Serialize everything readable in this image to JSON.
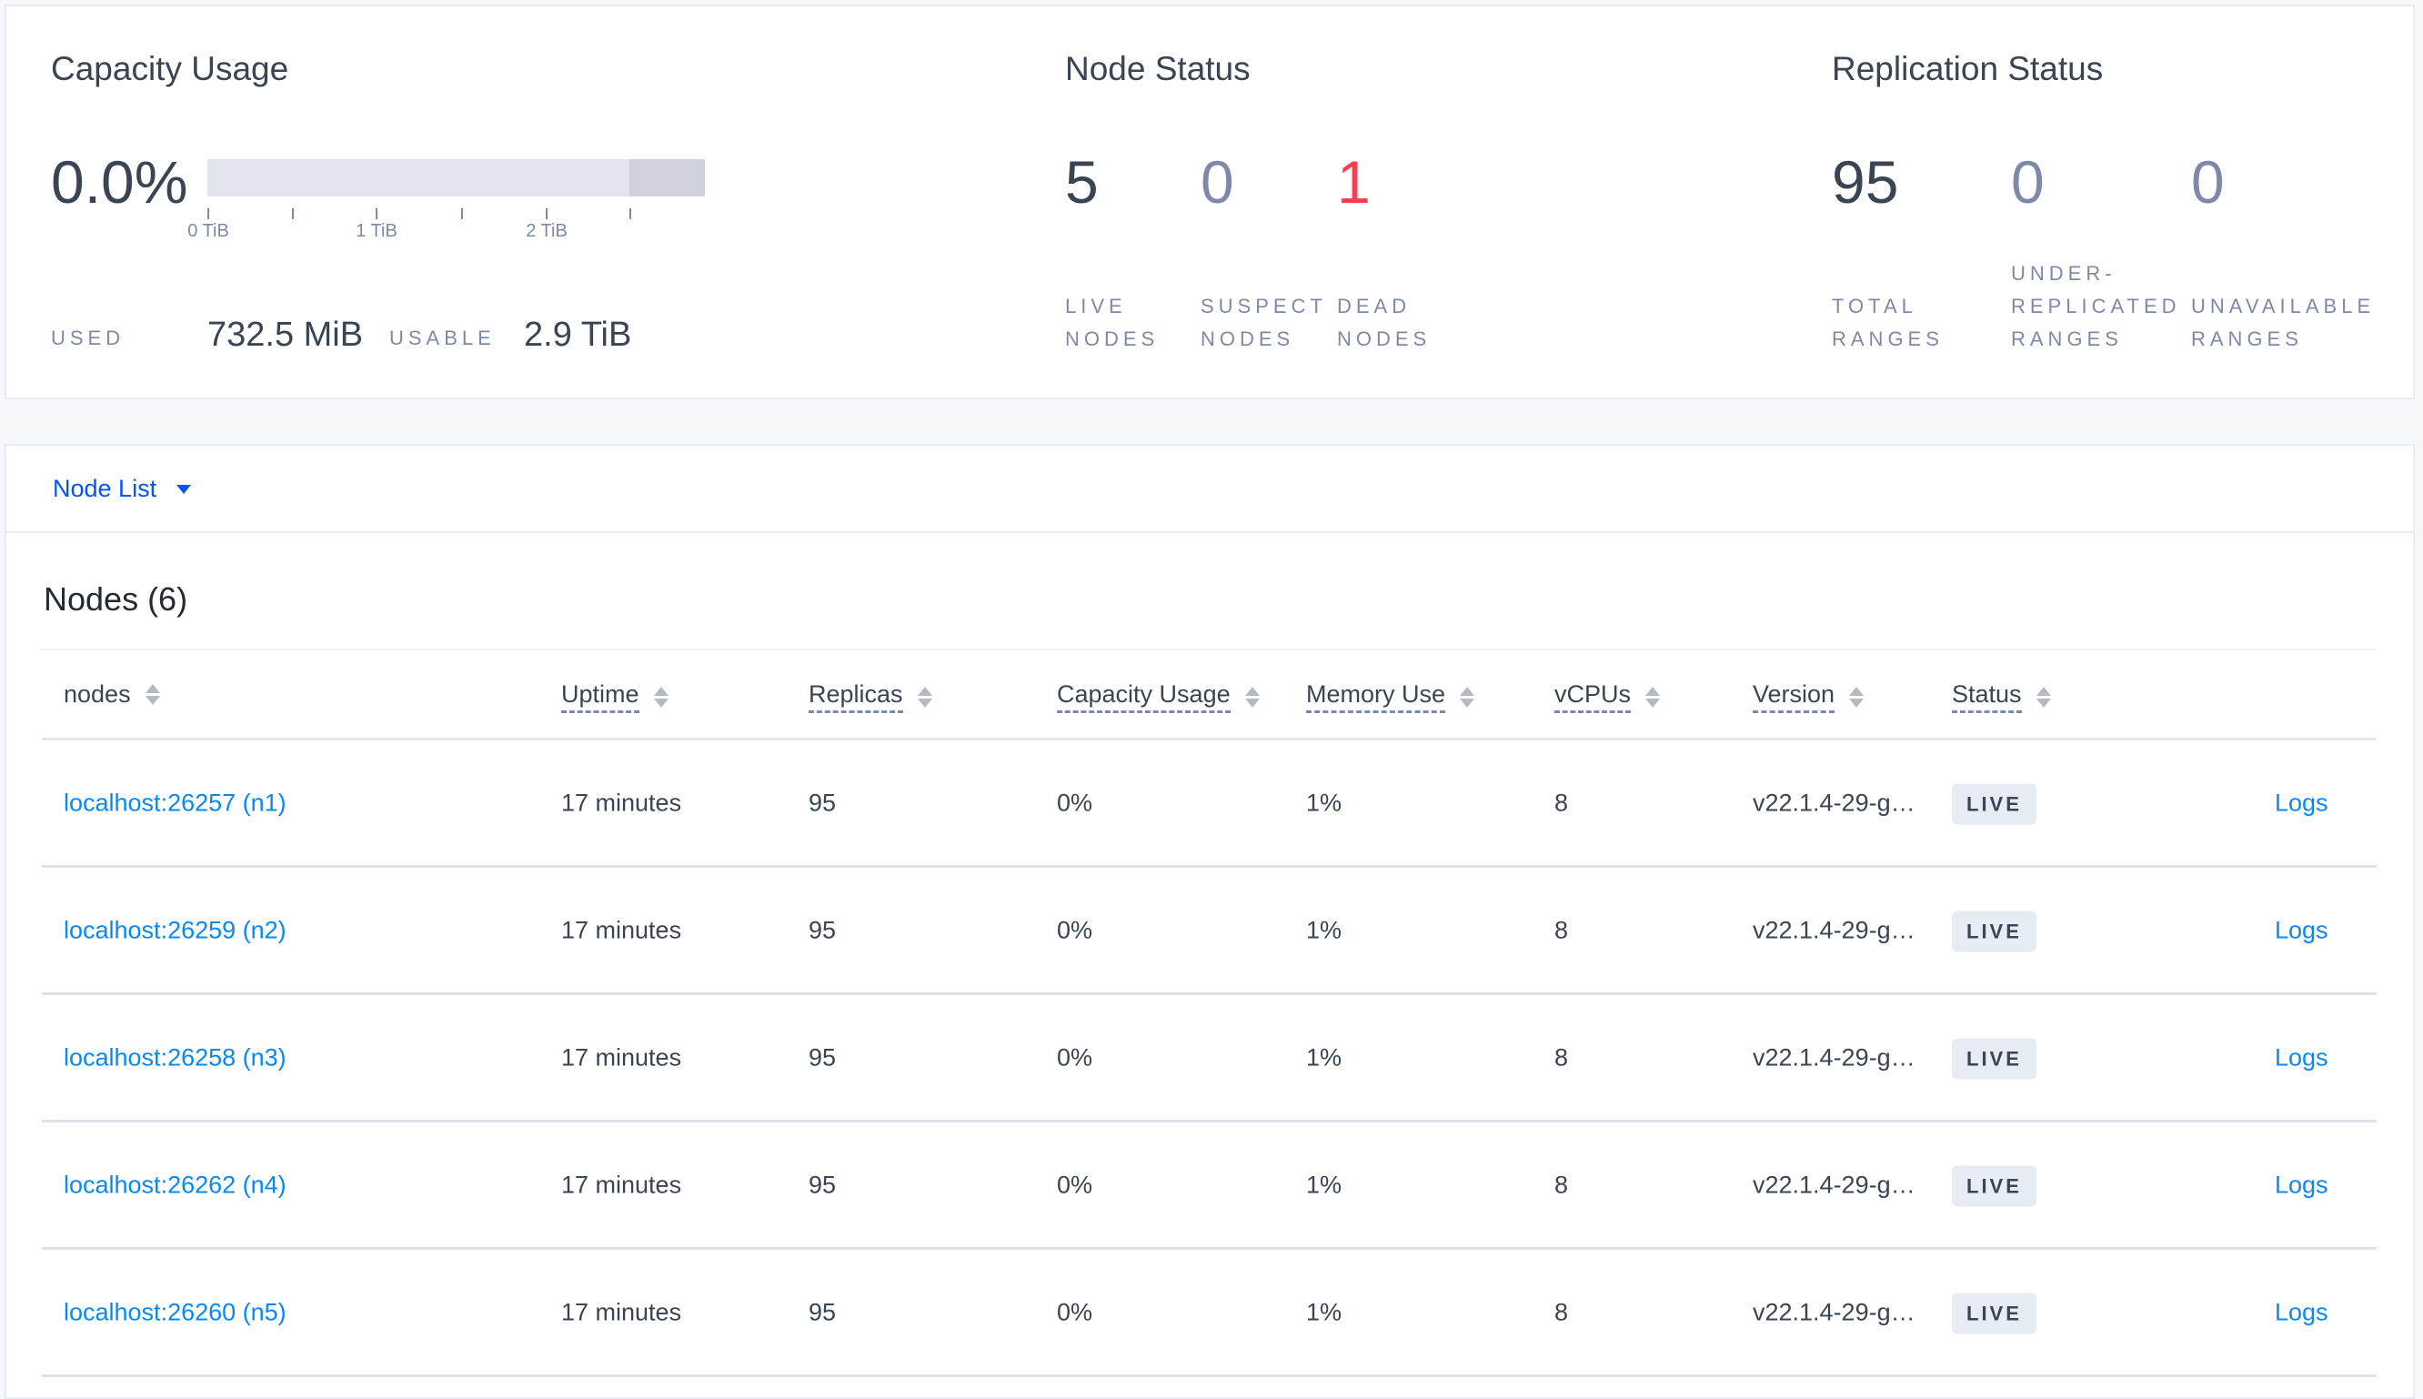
{
  "capacity": {
    "title": "Capacity Usage",
    "percent": "0.0%",
    "bar_fraction_used": 0.0,
    "ticks": [
      "0 TiB",
      "1 TiB",
      "2 TiB"
    ],
    "used_label": "USED",
    "used_value": "732.5 MiB",
    "usable_label": "USABLE",
    "usable_value": "2.9 TiB"
  },
  "node_status": {
    "title": "Node Status",
    "live": {
      "value": "5",
      "label1": "LIVE",
      "label2": "NODES"
    },
    "suspect": {
      "value": "0",
      "label1": "SUSPECT",
      "label2": "NODES"
    },
    "dead": {
      "value": "1",
      "label1": "DEAD",
      "label2": "NODES"
    }
  },
  "replication": {
    "title": "Replication Status",
    "total": {
      "value": "95",
      "label1": "TOTAL",
      "label2": "RANGES"
    },
    "under": {
      "value": "0",
      "label0": "UNDER-",
      "label1": "REPLICATED",
      "label2": "RANGES"
    },
    "unavailable": {
      "value": "0",
      "label1": "UNAVAILABLE",
      "label2": "RANGES"
    }
  },
  "colors": {
    "accent": "#0788ff",
    "dead": "#ff3b4e",
    "text": "#394455",
    "muted": "#7e89a9"
  },
  "node_list_dropdown": "Node List",
  "nodes_title": "Nodes (6)",
  "columns": [
    "nodes",
    "Uptime",
    "Replicas",
    "Capacity Usage",
    "Memory Use",
    "vCPUs",
    "Version",
    "Status"
  ],
  "rows": [
    {
      "node": "localhost:26257 (n1)",
      "uptime": "17 minutes",
      "replicas": "95",
      "capacity": "0%",
      "memory": "1%",
      "vcpus": "8",
      "version": "v22.1.4-29-g…",
      "status": "LIVE",
      "logs": "Logs"
    },
    {
      "node": "localhost:26259 (n2)",
      "uptime": "17 minutes",
      "replicas": "95",
      "capacity": "0%",
      "memory": "1%",
      "vcpus": "8",
      "version": "v22.1.4-29-g…",
      "status": "LIVE",
      "logs": "Logs"
    },
    {
      "node": "localhost:26258 (n3)",
      "uptime": "17 minutes",
      "replicas": "95",
      "capacity": "0%",
      "memory": "1%",
      "vcpus": "8",
      "version": "v22.1.4-29-g…",
      "status": "LIVE",
      "logs": "Logs"
    },
    {
      "node": "localhost:26262 (n4)",
      "uptime": "17 minutes",
      "replicas": "95",
      "capacity": "0%",
      "memory": "1%",
      "vcpus": "8",
      "version": "v22.1.4-29-g…",
      "status": "LIVE",
      "logs": "Logs"
    },
    {
      "node": "localhost:26260 (n5)",
      "uptime": "17 minutes",
      "replicas": "95",
      "capacity": "0%",
      "memory": "1%",
      "vcpus": "8",
      "version": "v22.1.4-29-g…",
      "status": "LIVE",
      "logs": "Logs"
    }
  ]
}
